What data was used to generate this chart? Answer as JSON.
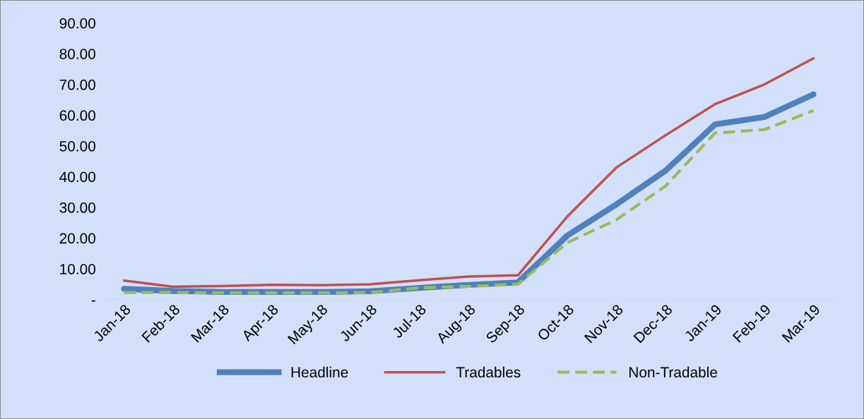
{
  "chart_data": {
    "type": "line",
    "categories": [
      "Jan-18",
      "Feb-18",
      "Mar-18",
      "Apr-18",
      "May-18",
      "Jun-18",
      "Jul-18",
      "Aug-18",
      "Sep-18",
      "Oct-18",
      "Nov-18",
      "Dec-18",
      "Jan-19",
      "Feb-19",
      "Mar-19"
    ],
    "series": [
      {
        "name": "Headline",
        "color": "#4f81bd",
        "line_style": "solid",
        "values": [
          3.5,
          2.8,
          2.5,
          2.5,
          2.5,
          2.7,
          3.8,
          4.8,
          5.6,
          20.8,
          31.0,
          42.0,
          57.0,
          59.4,
          66.8
        ]
      },
      {
        "name": "Tradables",
        "color": "#c0504d",
        "line_style": "solid",
        "values": [
          6.2,
          4.2,
          4.4,
          4.8,
          4.7,
          5.0,
          6.3,
          7.5,
          7.9,
          27.0,
          43.0,
          53.5,
          63.6,
          70.0,
          78.5
        ]
      },
      {
        "name": "Non-Tradable",
        "color": "#9bbb59",
        "line_style": "dashed",
        "values": [
          2.3,
          2.3,
          2.2,
          2.2,
          2.2,
          2.3,
          3.8,
          4.3,
          5.0,
          18.5,
          26.0,
          37.0,
          54.2,
          55.3,
          61.5
        ]
      }
    ],
    "ylim": [
      0,
      90
    ],
    "yticks": [
      {
        "value": 0,
        "label": "-"
      },
      {
        "value": 10,
        "label": "10.00"
      },
      {
        "value": 20,
        "label": "20.00"
      },
      {
        "value": 30,
        "label": "30.00"
      },
      {
        "value": 40,
        "label": "40.00"
      },
      {
        "value": 50,
        "label": "50.00"
      },
      {
        "value": 60,
        "label": "60.00"
      },
      {
        "value": 70,
        "label": "70.00"
      },
      {
        "value": 80,
        "label": "80.00"
      },
      {
        "value": 90,
        "label": "90.00"
      }
    ],
    "grid": false,
    "legend": "bottom",
    "marker": "none"
  }
}
